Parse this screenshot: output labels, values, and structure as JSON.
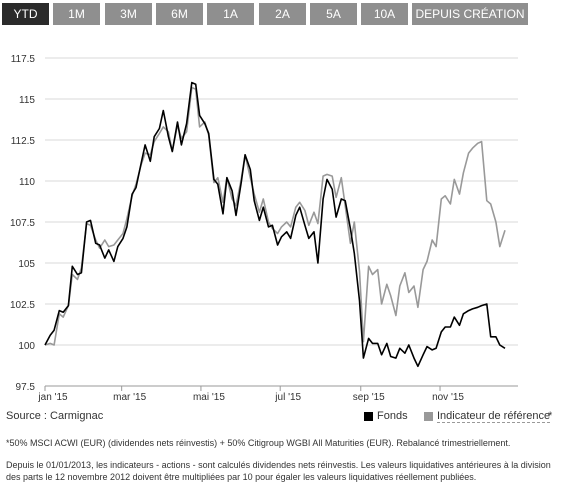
{
  "tabs": [
    "YTD",
    "1M",
    "3M",
    "6M",
    "1A",
    "2A",
    "5A",
    "10A",
    "DEPUIS CRÉATION"
  ],
  "active_tab": "YTD",
  "source": "Source : Carmignac",
  "legend": {
    "fund": "Fonds",
    "benchmark": "Indicateur de référence",
    "benchmark_suffix": "*"
  },
  "footnote_1": "*50% MSCI ACWI (EUR) (dividendes nets réinvestis) + 50% Citigroup WGBI All Maturities (EUR). Rebalancé trimestriellement.",
  "footnote_2": "Depuis le 01/01/2013, les indicateurs - actions - sont calculés dividendes nets réinvestis. Les valeurs liquidatives antérieures à la division des parts le 12 novembre 2012 doivent être multipliées par 10 pour égaler les valeurs liquidatives réellement publiées.",
  "colors": {
    "fund": "#000000",
    "benchmark": "#999999",
    "tab_bg": "#8f8f8f",
    "tab_active": "#2b2b2b",
    "grid": "#d9d9d9"
  },
  "chart_data": {
    "type": "line",
    "title": "",
    "xlabel": "",
    "ylabel": "",
    "grid": true,
    "legend_position": "bottom-right",
    "x_ticks": [
      "jan '15",
      "mar '15",
      "mai '15",
      "jul '15",
      "sep '15",
      "nov '15"
    ],
    "y_ticks": [
      97.5,
      100,
      102.5,
      105,
      107.5,
      110,
      112.5,
      115,
      117.5
    ],
    "ylim": [
      97.5,
      117.5
    ],
    "xlim": [
      "2015-01-01",
      "2015-12-31"
    ],
    "series": [
      {
        "name": "Fonds",
        "color": "#000000",
        "points": [
          [
            "2015-01-01",
            100.0
          ],
          [
            "2015-01-05",
            100.6
          ],
          [
            "2015-01-08",
            100.9
          ],
          [
            "2015-01-12",
            102.1
          ],
          [
            "2015-01-15",
            102.0
          ],
          [
            "2015-01-19",
            102.4
          ],
          [
            "2015-01-22",
            104.8
          ],
          [
            "2015-01-26",
            104.3
          ],
          [
            "2015-01-29",
            104.4
          ],
          [
            "2015-02-02",
            107.5
          ],
          [
            "2015-02-05",
            107.6
          ],
          [
            "2015-02-09",
            106.2
          ],
          [
            "2015-02-12",
            106.1
          ],
          [
            "2015-02-16",
            105.3
          ],
          [
            "2015-02-19",
            105.8
          ],
          [
            "2015-02-23",
            105.1
          ],
          [
            "2015-02-26",
            106.0
          ],
          [
            "2015-03-02",
            106.5
          ],
          [
            "2015-03-05",
            107.2
          ],
          [
            "2015-03-09",
            109.2
          ],
          [
            "2015-03-12",
            109.6
          ],
          [
            "2015-03-16",
            111.1
          ],
          [
            "2015-03-19",
            112.2
          ],
          [
            "2015-03-23",
            111.2
          ],
          [
            "2015-03-26",
            112.7
          ],
          [
            "2015-03-30",
            113.2
          ],
          [
            "2015-04-02",
            114.3
          ],
          [
            "2015-04-06",
            112.7
          ],
          [
            "2015-04-09",
            111.8
          ],
          [
            "2015-04-13",
            113.6
          ],
          [
            "2015-04-16",
            112.2
          ],
          [
            "2015-04-20",
            113.5
          ],
          [
            "2015-04-24",
            116.0
          ],
          [
            "2015-04-27",
            115.9
          ],
          [
            "2015-04-30",
            114.0
          ],
          [
            "2015-05-04",
            113.5
          ],
          [
            "2015-05-07",
            112.9
          ],
          [
            "2015-05-11",
            110.1
          ],
          [
            "2015-05-14",
            109.8
          ],
          [
            "2015-05-18",
            108.0
          ],
          [
            "2015-05-21",
            110.2
          ],
          [
            "2015-05-25",
            109.4
          ],
          [
            "2015-05-28",
            107.9
          ],
          [
            "2015-06-01",
            109.9
          ],
          [
            "2015-06-04",
            111.6
          ],
          [
            "2015-06-08",
            110.7
          ],
          [
            "2015-06-11",
            108.8
          ],
          [
            "2015-06-15",
            107.6
          ],
          [
            "2015-06-18",
            108.4
          ],
          [
            "2015-06-22",
            107.2
          ],
          [
            "2015-06-25",
            107.3
          ],
          [
            "2015-06-29",
            106.1
          ],
          [
            "2015-07-02",
            106.6
          ],
          [
            "2015-07-06",
            106.9
          ],
          [
            "2015-07-09",
            106.5
          ],
          [
            "2015-07-13",
            107.9
          ],
          [
            "2015-07-16",
            108.4
          ],
          [
            "2015-07-20",
            107.3
          ],
          [
            "2015-07-23",
            106.5
          ],
          [
            "2015-07-27",
            106.9
          ],
          [
            "2015-07-30",
            105.0
          ],
          [
            "2015-08-03",
            108.9
          ],
          [
            "2015-08-06",
            110.1
          ],
          [
            "2015-08-10",
            109.5
          ],
          [
            "2015-08-13",
            107.8
          ],
          [
            "2015-08-17",
            108.9
          ],
          [
            "2015-08-20",
            108.8
          ],
          [
            "2015-08-24",
            107.1
          ],
          [
            "2015-08-27",
            105.6
          ],
          [
            "2015-08-31",
            102.7
          ],
          [
            "2015-09-03",
            99.2
          ],
          [
            "2015-09-07",
            100.4
          ],
          [
            "2015-09-10",
            100.1
          ],
          [
            "2015-09-14",
            100.1
          ],
          [
            "2015-09-17",
            99.4
          ],
          [
            "2015-09-21",
            100.1
          ],
          [
            "2015-09-24",
            99.3
          ],
          [
            "2015-09-28",
            99.2
          ],
          [
            "2015-10-01",
            99.8
          ],
          [
            "2015-10-05",
            99.5
          ],
          [
            "2015-10-08",
            100.0
          ],
          [
            "2015-10-12",
            99.2
          ],
          [
            "2015-10-15",
            98.7
          ],
          [
            "2015-10-19",
            99.4
          ],
          [
            "2015-10-22",
            99.9
          ],
          [
            "2015-10-26",
            99.7
          ],
          [
            "2015-10-29",
            99.8
          ],
          [
            "2015-11-02",
            100.8
          ],
          [
            "2015-11-05",
            101.1
          ],
          [
            "2015-11-09",
            101.1
          ],
          [
            "2015-11-12",
            101.7
          ],
          [
            "2015-11-16",
            101.2
          ],
          [
            "2015-11-19",
            101.9
          ],
          [
            "2015-11-23",
            102.1
          ],
          [
            "2015-11-26",
            102.2
          ],
          [
            "2015-11-30",
            102.3
          ],
          [
            "2015-12-03",
            102.4
          ],
          [
            "2015-12-07",
            102.5
          ],
          [
            "2015-12-10",
            100.5
          ],
          [
            "2015-12-14",
            100.5
          ],
          [
            "2015-12-17",
            100.0
          ],
          [
            "2015-12-21",
            99.8
          ]
        ]
      },
      {
        "name": "Indicateur de référence",
        "color": "#999999",
        "points": [
          [
            "2015-01-01",
            100.0
          ],
          [
            "2015-01-05",
            100.1
          ],
          [
            "2015-01-08",
            100.0
          ],
          [
            "2015-01-12",
            101.9
          ],
          [
            "2015-01-15",
            101.7
          ],
          [
            "2015-01-19",
            102.4
          ],
          [
            "2015-01-22",
            104.3
          ],
          [
            "2015-01-26",
            104.0
          ],
          [
            "2015-01-29",
            104.7
          ],
          [
            "2015-02-02",
            107.4
          ],
          [
            "2015-02-05",
            107.3
          ],
          [
            "2015-02-09",
            106.4
          ],
          [
            "2015-02-12",
            105.9
          ],
          [
            "2015-02-16",
            106.4
          ],
          [
            "2015-02-19",
            106.0
          ],
          [
            "2015-02-23",
            106.1
          ],
          [
            "2015-02-26",
            106.4
          ],
          [
            "2015-03-02",
            106.8
          ],
          [
            "2015-03-05",
            107.7
          ],
          [
            "2015-03-09",
            109.1
          ],
          [
            "2015-03-12",
            109.8
          ],
          [
            "2015-03-16",
            111.0
          ],
          [
            "2015-03-19",
            111.7
          ],
          [
            "2015-03-23",
            111.6
          ],
          [
            "2015-03-26",
            112.4
          ],
          [
            "2015-03-30",
            112.9
          ],
          [
            "2015-04-02",
            113.3
          ],
          [
            "2015-04-06",
            113.0
          ],
          [
            "2015-04-09",
            111.8
          ],
          [
            "2015-04-13",
            113.4
          ],
          [
            "2015-04-16",
            112.6
          ],
          [
            "2015-04-20",
            113.0
          ],
          [
            "2015-04-24",
            115.7
          ],
          [
            "2015-04-27",
            115.6
          ],
          [
            "2015-04-30",
            113.3
          ],
          [
            "2015-05-04",
            113.6
          ],
          [
            "2015-05-07",
            112.8
          ],
          [
            "2015-05-11",
            109.9
          ],
          [
            "2015-05-14",
            110.2
          ],
          [
            "2015-05-18",
            108.7
          ],
          [
            "2015-05-21",
            110.2
          ],
          [
            "2015-05-25",
            108.9
          ],
          [
            "2015-05-28",
            108.5
          ],
          [
            "2015-06-01",
            110.1
          ],
          [
            "2015-06-04",
            111.6
          ],
          [
            "2015-06-08",
            110.2
          ],
          [
            "2015-06-11",
            109.2
          ],
          [
            "2015-06-15",
            108.1
          ],
          [
            "2015-06-18",
            108.9
          ],
          [
            "2015-06-22",
            107.5
          ],
          [
            "2015-06-25",
            107.1
          ],
          [
            "2015-06-29",
            106.8
          ],
          [
            "2015-07-02",
            107.2
          ],
          [
            "2015-07-06",
            107.5
          ],
          [
            "2015-07-09",
            107.2
          ],
          [
            "2015-07-13",
            108.4
          ],
          [
            "2015-07-16",
            108.7
          ],
          [
            "2015-07-20",
            108.2
          ],
          [
            "2015-07-23",
            107.3
          ],
          [
            "2015-07-27",
            108.1
          ],
          [
            "2015-07-30",
            107.4
          ],
          [
            "2015-08-03",
            110.3
          ],
          [
            "2015-08-06",
            110.4
          ],
          [
            "2015-08-10",
            110.3
          ],
          [
            "2015-08-13",
            109.0
          ],
          [
            "2015-08-17",
            110.2
          ],
          [
            "2015-08-20",
            108.5
          ],
          [
            "2015-08-24",
            106.2
          ],
          [
            "2015-08-27",
            107.5
          ],
          [
            "2015-08-31",
            104.5
          ],
          [
            "2015-09-03",
            100.2
          ],
          [
            "2015-09-07",
            104.8
          ],
          [
            "2015-09-10",
            104.3
          ],
          [
            "2015-09-14",
            104.6
          ],
          [
            "2015-09-17",
            102.5
          ],
          [
            "2015-09-21",
            103.7
          ],
          [
            "2015-09-24",
            103.0
          ],
          [
            "2015-09-28",
            101.8
          ],
          [
            "2015-10-01",
            103.6
          ],
          [
            "2015-10-05",
            104.4
          ],
          [
            "2015-10-08",
            103.2
          ],
          [
            "2015-10-12",
            103.6
          ],
          [
            "2015-10-15",
            102.3
          ],
          [
            "2015-10-19",
            104.6
          ],
          [
            "2015-10-22",
            105.1
          ],
          [
            "2015-10-26",
            106.4
          ],
          [
            "2015-10-29",
            106.0
          ],
          [
            "2015-11-02",
            108.9
          ],
          [
            "2015-11-05",
            109.1
          ],
          [
            "2015-11-09",
            108.6
          ],
          [
            "2015-11-12",
            110.1
          ],
          [
            "2015-11-16",
            109.2
          ],
          [
            "2015-11-19",
            110.5
          ],
          [
            "2015-11-23",
            111.7
          ],
          [
            "2015-11-26",
            112.0
          ],
          [
            "2015-11-30",
            112.3
          ],
          [
            "2015-12-03",
            112.4
          ],
          [
            "2015-12-07",
            108.8
          ],
          [
            "2015-12-10",
            108.6
          ],
          [
            "2015-12-14",
            107.5
          ],
          [
            "2015-12-17",
            106.0
          ],
          [
            "2015-12-21",
            107.0
          ]
        ]
      }
    ]
  }
}
